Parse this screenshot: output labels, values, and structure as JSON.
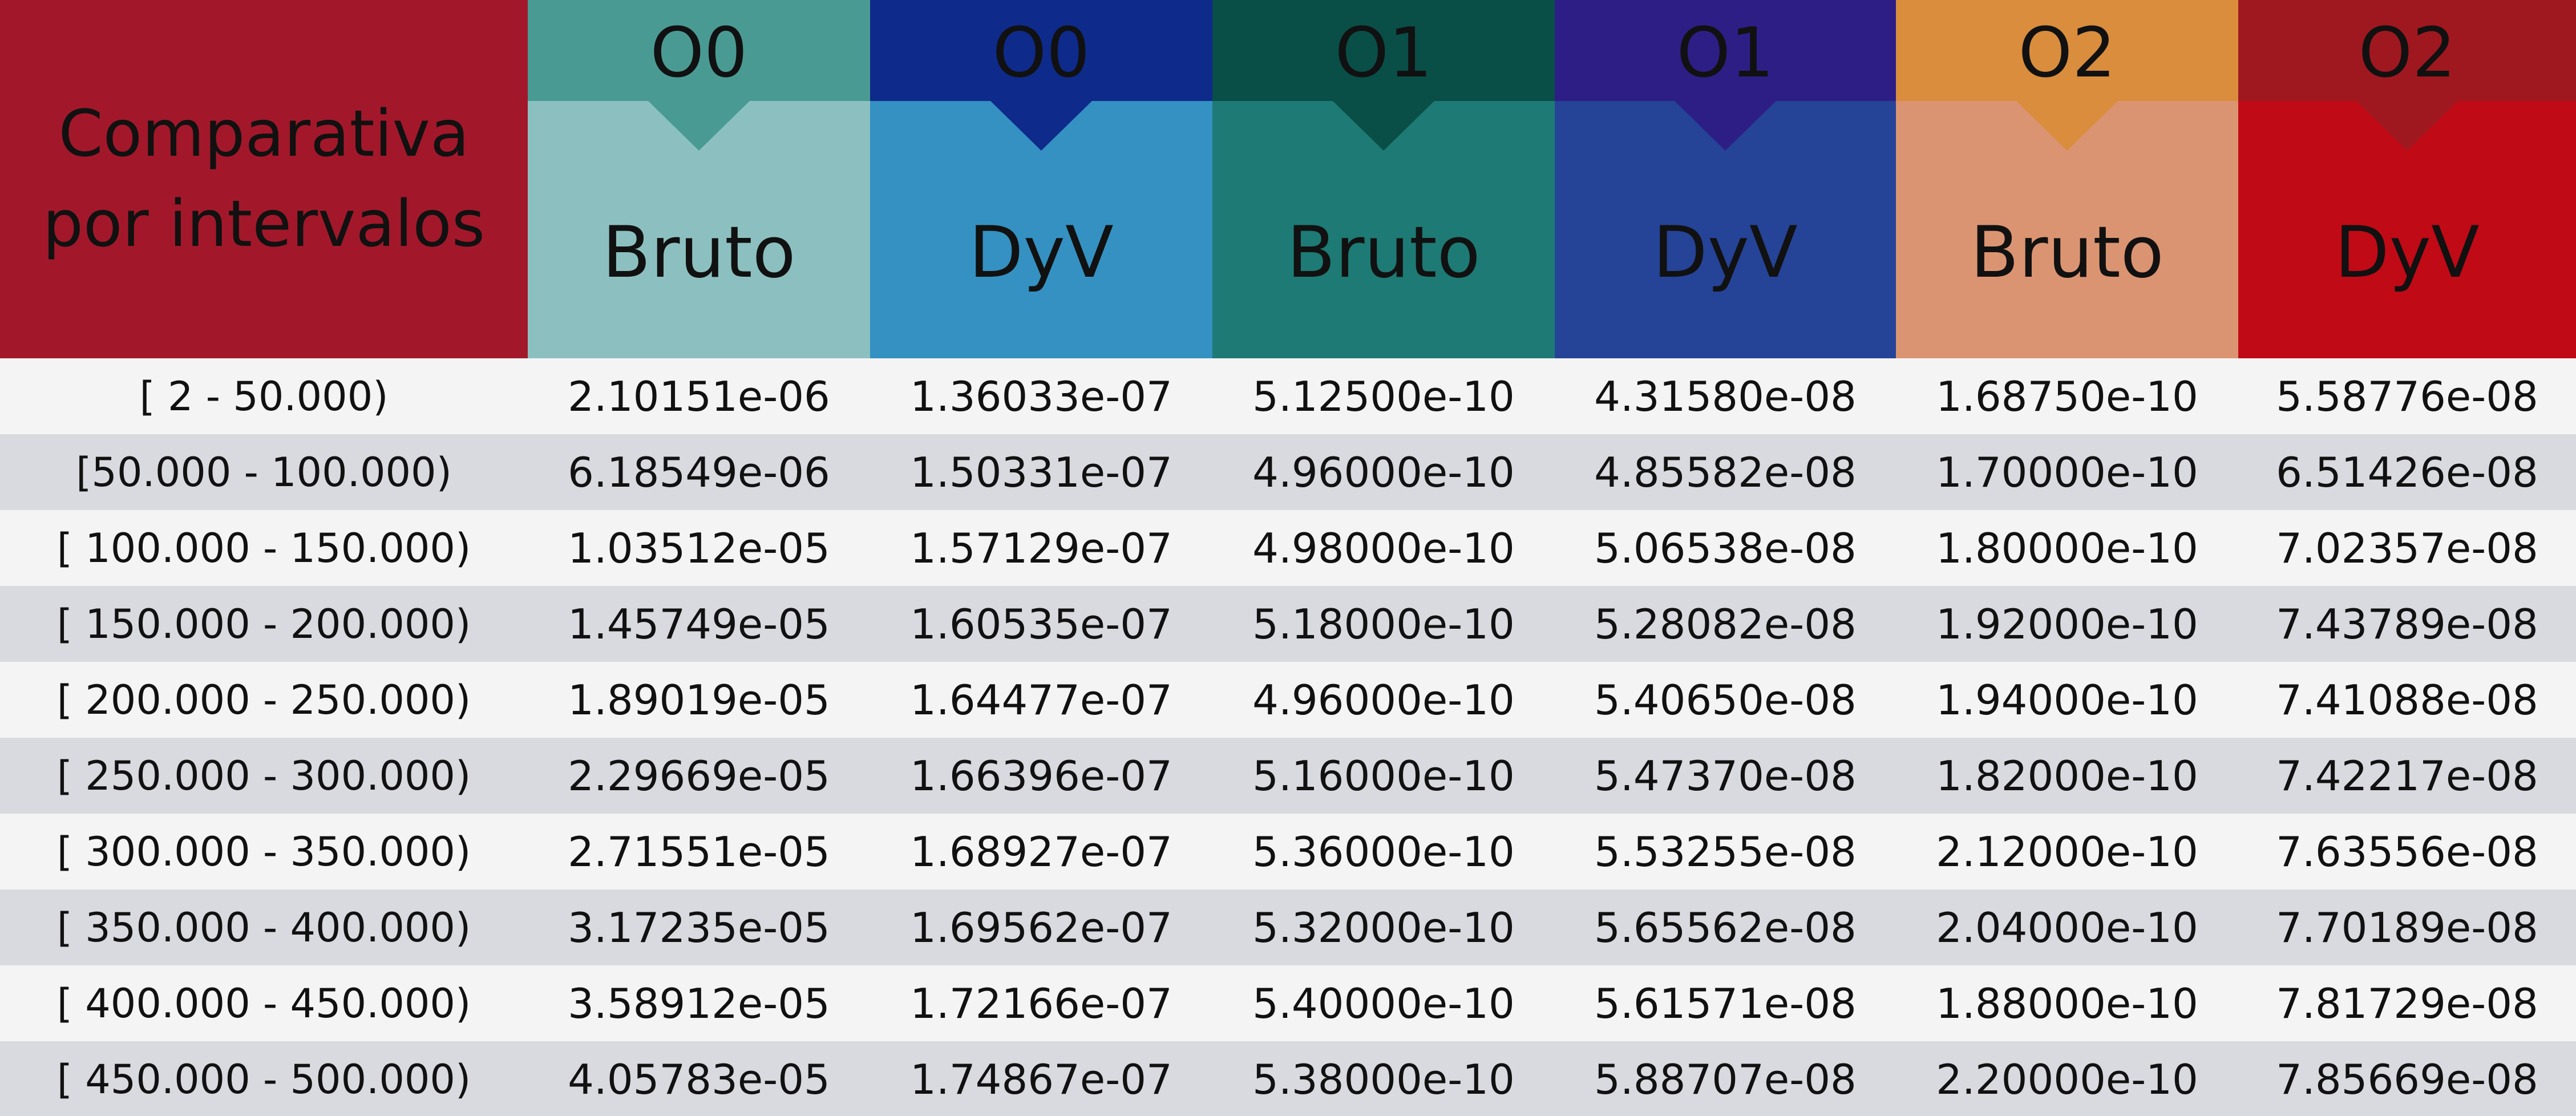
{
  "chart_data": {
    "type": "table",
    "title": "Comparativa por intervalos",
    "columns": [
      {
        "group": "O0",
        "method": "Bruto",
        "top_color": "#4A9A94",
        "bottom_color": "#8CC0C0"
      },
      {
        "group": "O0",
        "method": "DyV",
        "top_color": "#0E2A8A",
        "bottom_color": "#3491C2"
      },
      {
        "group": "O1",
        "method": "Bruto",
        "top_color": "#0A4E48",
        "bottom_color": "#1E7A74"
      },
      {
        "group": "O1",
        "method": "DyV",
        "top_color": "#2D1E86",
        "bottom_color": "#254397"
      },
      {
        "group": "O2",
        "method": "Bruto",
        "top_color": "#D98D3D",
        "bottom_color": "#DB9471"
      },
      {
        "group": "O2",
        "method": "DyV",
        "top_color": "#A0181F",
        "bottom_color": "#C00A16"
      }
    ],
    "rows": [
      {
        "interval": "[ 2 - 50.000)",
        "values": [
          "2.10151e-06",
          "1.36033e-07",
          "5.12500e-10",
          "4.31580e-08",
          "1.68750e-10",
          "5.58776e-08"
        ]
      },
      {
        "interval": "[50.000  - 100.000)",
        "values": [
          "6.18549e-06",
          "1.50331e-07",
          "4.96000e-10",
          "4.85582e-08",
          "1.70000e-10",
          "6.51426e-08"
        ]
      },
      {
        "interval": "[ 100.000 - 150.000)",
        "values": [
          "1.03512e-05",
          "1.57129e-07",
          "4.98000e-10",
          "5.06538e-08",
          "1.80000e-10",
          "7.02357e-08"
        ]
      },
      {
        "interval": "[ 150.000 - 200.000)",
        "values": [
          "1.45749e-05",
          "1.60535e-07",
          "5.18000e-10",
          "5.28082e-08",
          "1.92000e-10",
          "7.43789e-08"
        ]
      },
      {
        "interval": "[ 200.000 - 250.000)",
        "values": [
          "1.89019e-05",
          "1.64477e-07",
          "4.96000e-10",
          "5.40650e-08",
          "1.94000e-10",
          "7.41088e-08"
        ]
      },
      {
        "interval": "[ 250.000 - 300.000)",
        "values": [
          "2.29669e-05",
          "1.66396e-07",
          "5.16000e-10",
          "5.47370e-08",
          "1.82000e-10",
          "7.42217e-08"
        ]
      },
      {
        "interval": "[ 300.000 - 350.000)",
        "values": [
          "2.71551e-05",
          "1.68927e-07",
          "5.36000e-10",
          "5.53255e-08",
          "2.12000e-10",
          "7.63556e-08"
        ]
      },
      {
        "interval": "[ 350.000 - 400.000)",
        "values": [
          "3.17235e-05",
          "1.69562e-07",
          "5.32000e-10",
          "5.65562e-08",
          "2.04000e-10",
          "7.70189e-08"
        ]
      },
      {
        "interval": "[ 400.000 - 450.000)",
        "values": [
          "3.58912e-05",
          "1.72166e-07",
          "5.40000e-10",
          "5.61571e-08",
          "1.88000e-10",
          "7.81729e-08"
        ]
      },
      {
        "interval": "[ 450.000 - 500.000)",
        "values": [
          "4.05783e-05",
          "1.74867e-07",
          "5.38000e-10",
          "5.88707e-08",
          "2.20000e-10",
          "7.85669e-08"
        ]
      }
    ]
  },
  "colors": {
    "corner": "#A2182A",
    "row_light": "#F4F4F5",
    "row_dark": "#D9DADF",
    "text": "#111111"
  }
}
